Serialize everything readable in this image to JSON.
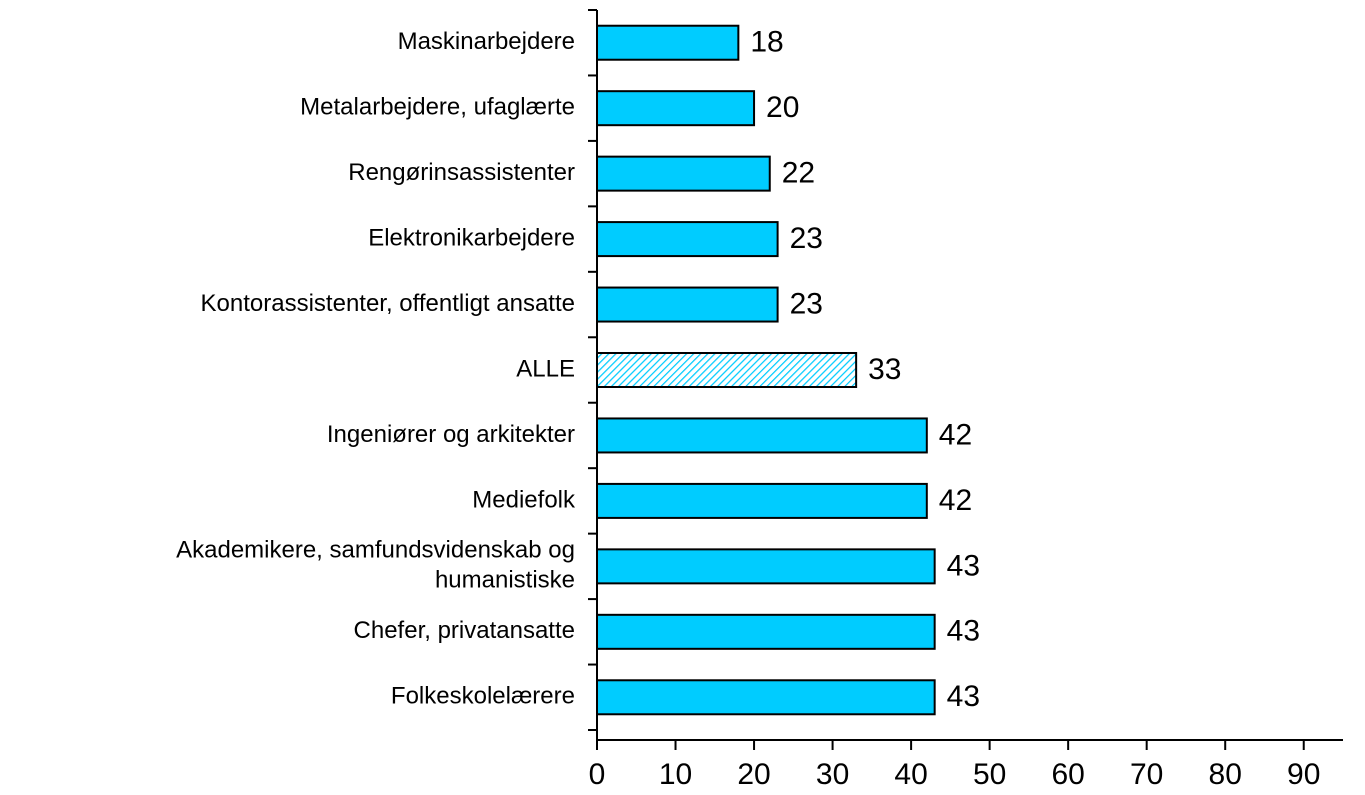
{
  "chart_data": {
    "type": "barh",
    "categories": [
      "Maskinarbejdere",
      "Metalarbejdere, ufaglærte",
      "Rengørinsassistenter",
      "Elektronikarbejdere",
      "Kontorassistenter, offentligt ansatte",
      "ALLE",
      "Ingeniører og arkitekter",
      "Mediefolk",
      "Akademikere, samfundsvidenskab og\nhumanistiske",
      "Chefer, privatansatte",
      "Folkeskolelærere"
    ],
    "values": [
      18,
      20,
      22,
      23,
      23,
      33,
      42,
      42,
      43,
      43,
      43
    ],
    "color": "#00ccff",
    "hatched_index": 5,
    "xlim": [
      0,
      95
    ],
    "xticks": [
      0,
      10,
      20,
      30,
      40,
      50,
      60,
      70,
      80,
      90
    ],
    "grid": false
  }
}
